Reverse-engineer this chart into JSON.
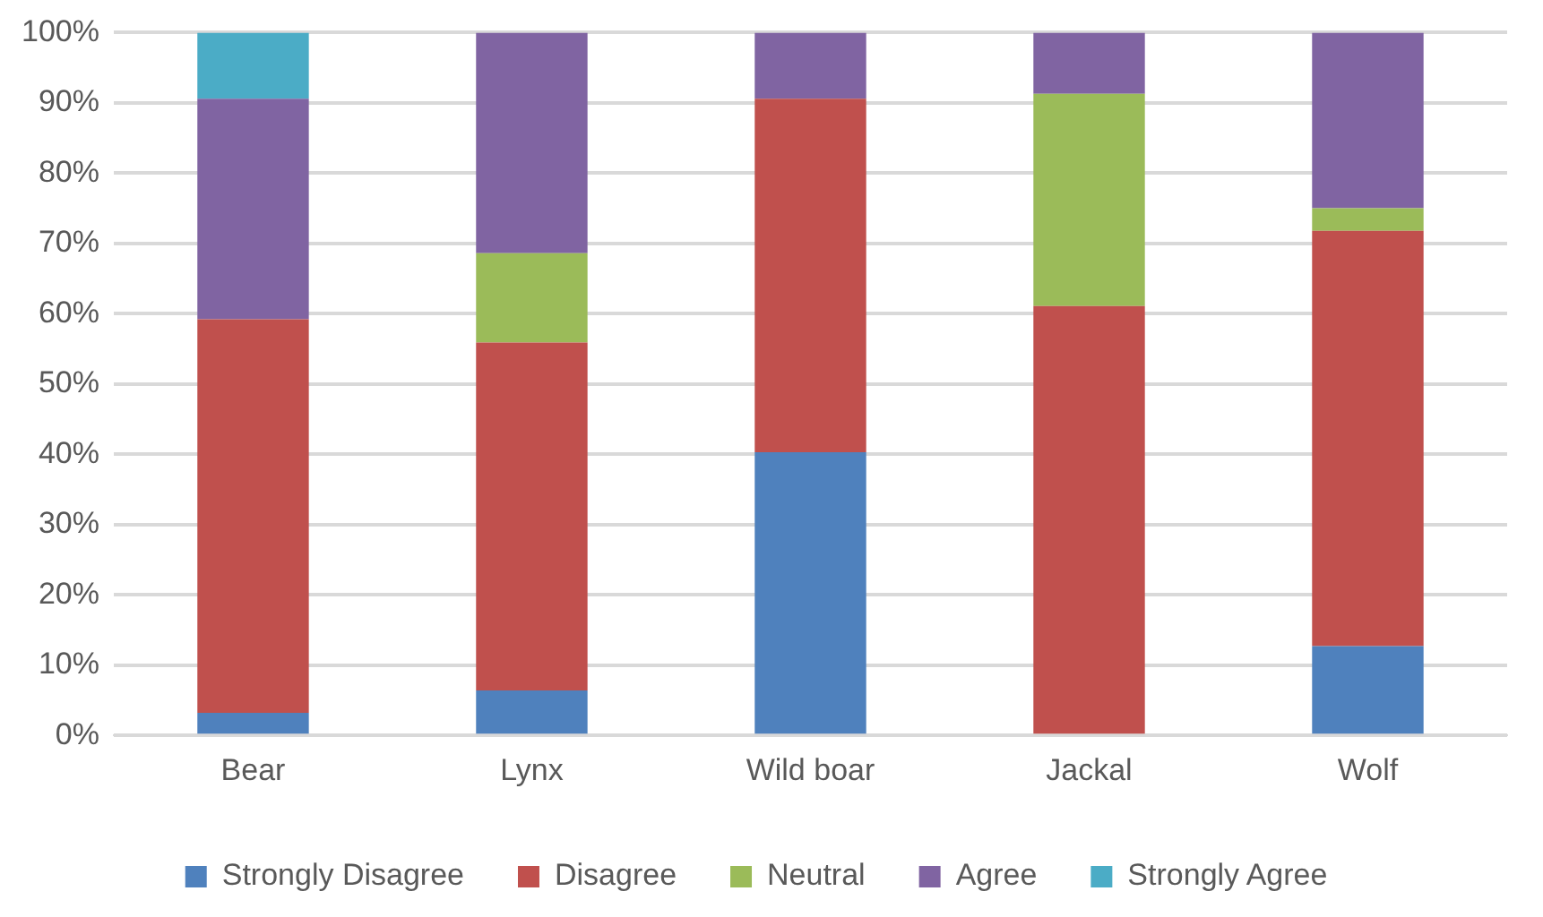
{
  "chart_data": {
    "type": "bar",
    "stacked": true,
    "categories": [
      "Bear",
      "Lynx",
      "Wild boar",
      "Jackal",
      "Wolf"
    ],
    "series": [
      {
        "name": "Strongly Disagree",
        "color": "#4f81bd",
        "values": [
          3.2,
          6.4,
          40.3,
          0,
          12.7
        ]
      },
      {
        "name": "Disagree",
        "color": "#c0504d",
        "values": [
          56.0,
          49.5,
          50.3,
          61.1,
          59.1
        ]
      },
      {
        "name": "Neutral",
        "color": "#9bbb59",
        "values": [
          0,
          12.7,
          0,
          30.2,
          3.2
        ]
      },
      {
        "name": "Agree",
        "color": "#8064a2",
        "values": [
          31.4,
          31.4,
          9.4,
          8.7,
          25.0
        ]
      },
      {
        "name": "Strongly Agree",
        "color": "#4bacc6",
        "values": [
          9.4,
          0,
          0,
          0,
          0
        ]
      }
    ],
    "ylim": [
      0,
      100
    ],
    "yticks": [
      {
        "value": 0,
        "label": "0%"
      },
      {
        "value": 10,
        "label": "10%"
      },
      {
        "value": 20,
        "label": "20%"
      },
      {
        "value": 30,
        "label": "30%"
      },
      {
        "value": 40,
        "label": "40%"
      },
      {
        "value": 50,
        "label": "50%"
      },
      {
        "value": 60,
        "label": "60%"
      },
      {
        "value": 70,
        "label": "70%"
      },
      {
        "value": 80,
        "label": "80%"
      },
      {
        "value": 90,
        "label": "90%"
      },
      {
        "value": 100,
        "label": "100%"
      }
    ],
    "grid": "y",
    "legend": "bottom"
  }
}
